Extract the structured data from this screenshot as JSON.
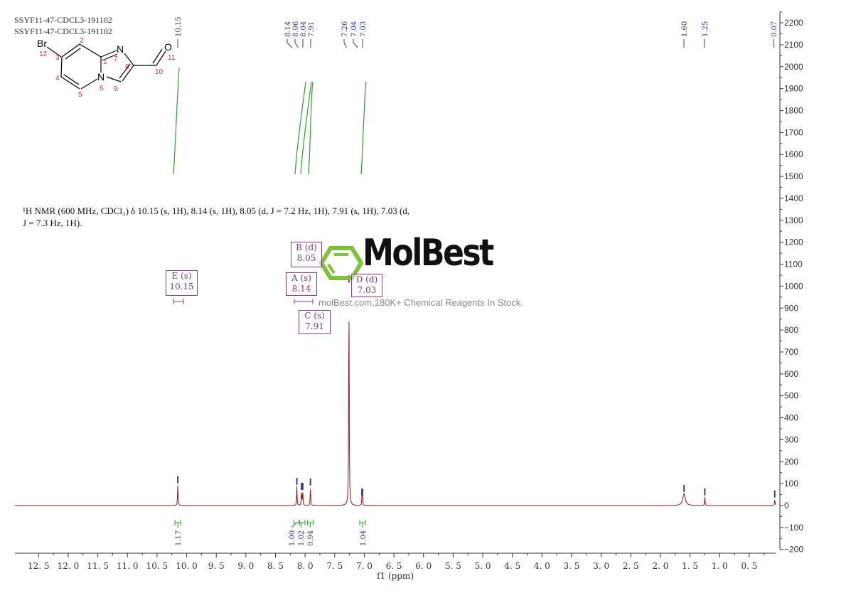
{
  "header": {
    "line1": "SSYF11-47-CDCL3-191102",
    "line2": "SSYF11-47-CDCL3-191102"
  },
  "molecule": {
    "atoms": {
      "br": "Br",
      "n7": "N",
      "n6": "N",
      "o": "O"
    },
    "numbers": [
      "1",
      "2",
      "3",
      "4",
      "5",
      "6",
      "7",
      "8",
      "9",
      "10",
      "11",
      "12"
    ]
  },
  "description": {
    "line1": "¹H NMR (600 MHz, CDCl₃) δ 10.15 (s, 1H), 8.14 (s, 1H), 8.05 (d, J = 7.2 Hz, 1H), 7.91 (s, 1H), 7.03 (d,",
    "line2": "J = 7.3 Hz, 1H)."
  },
  "multiplets": [
    {
      "label": "E (s)",
      "shift": "10.15"
    },
    {
      "label": "B (d)",
      "shift": "8.05"
    },
    {
      "label": "A (s)",
      "shift": "8.14"
    },
    {
      "label": "D (d)",
      "shift": "7.03"
    },
    {
      "label": "C (s)",
      "shift": "7.91"
    }
  ],
  "watermark": {
    "logo": "MolBest",
    "tagline": "molBest.com,180K+ Chemical Reagents In Stock.",
    "logo_color": "#7dc23a"
  },
  "colors": {
    "spectrum": "#8b1a1a",
    "integral": "#2e9e2e",
    "peak_label": "#3a3a8a",
    "box": "#8a3a8a"
  },
  "chart_data": {
    "type": "line",
    "xlabel": "f1 (ppm)",
    "xlim": [
      12.9,
      0.05
    ],
    "ylim": [
      -200,
      2250
    ],
    "x_reversed": true,
    "x_ticks": [
      "12.5",
      "12.0",
      "11.5",
      "11.0",
      "10.5",
      "10.0",
      "9.5",
      "9.0",
      "8.5",
      "8.0",
      "7.5",
      "7.0",
      "6.5",
      "6.0",
      "5.5",
      "5.0",
      "4.5",
      "4.0",
      "3.5",
      "3.0",
      "2.5",
      "2.0",
      "1.5",
      "1.0",
      "0.5"
    ],
    "y_ticks": [
      "2200",
      "2100",
      "2000",
      "1900",
      "1800",
      "1700",
      "1600",
      "1500",
      "1400",
      "1300",
      "1200",
      "1100",
      "1000",
      "900",
      "800",
      "700",
      "600",
      "500",
      "400",
      "300",
      "200",
      "100",
      "0",
      "-100",
      "-200"
    ],
    "peak_labels": [
      "10.15",
      "8.14",
      "8.06",
      "8.04",
      "7.91",
      "7.26",
      "7.04",
      "7.03",
      "1.60",
      "1.25",
      "0.07"
    ],
    "peaks": [
      {
        "ppm": 10.15,
        "height": 95
      },
      {
        "ppm": 8.14,
        "height": 88
      },
      {
        "ppm": 8.06,
        "height": 65
      },
      {
        "ppm": 8.04,
        "height": 65
      },
      {
        "ppm": 7.91,
        "height": 85
      },
      {
        "ppm": 7.26,
        "height": 1010
      },
      {
        "ppm": 7.04,
        "height": 38
      },
      {
        "ppm": 7.03,
        "height": 38
      },
      {
        "ppm": 1.6,
        "height": 55,
        "broad": true
      },
      {
        "ppm": 1.25,
        "height": 40
      },
      {
        "ppm": 0.07,
        "height": 30
      }
    ],
    "integrals": [
      {
        "ppm": 10.15,
        "value": "1.17"
      },
      {
        "ppm": 8.14,
        "value": "1.00"
      },
      {
        "ppm": 8.05,
        "value": "1.02"
      },
      {
        "ppm": 7.91,
        "value": "0.94"
      },
      {
        "ppm": 7.03,
        "value": "1.04"
      }
    ]
  }
}
